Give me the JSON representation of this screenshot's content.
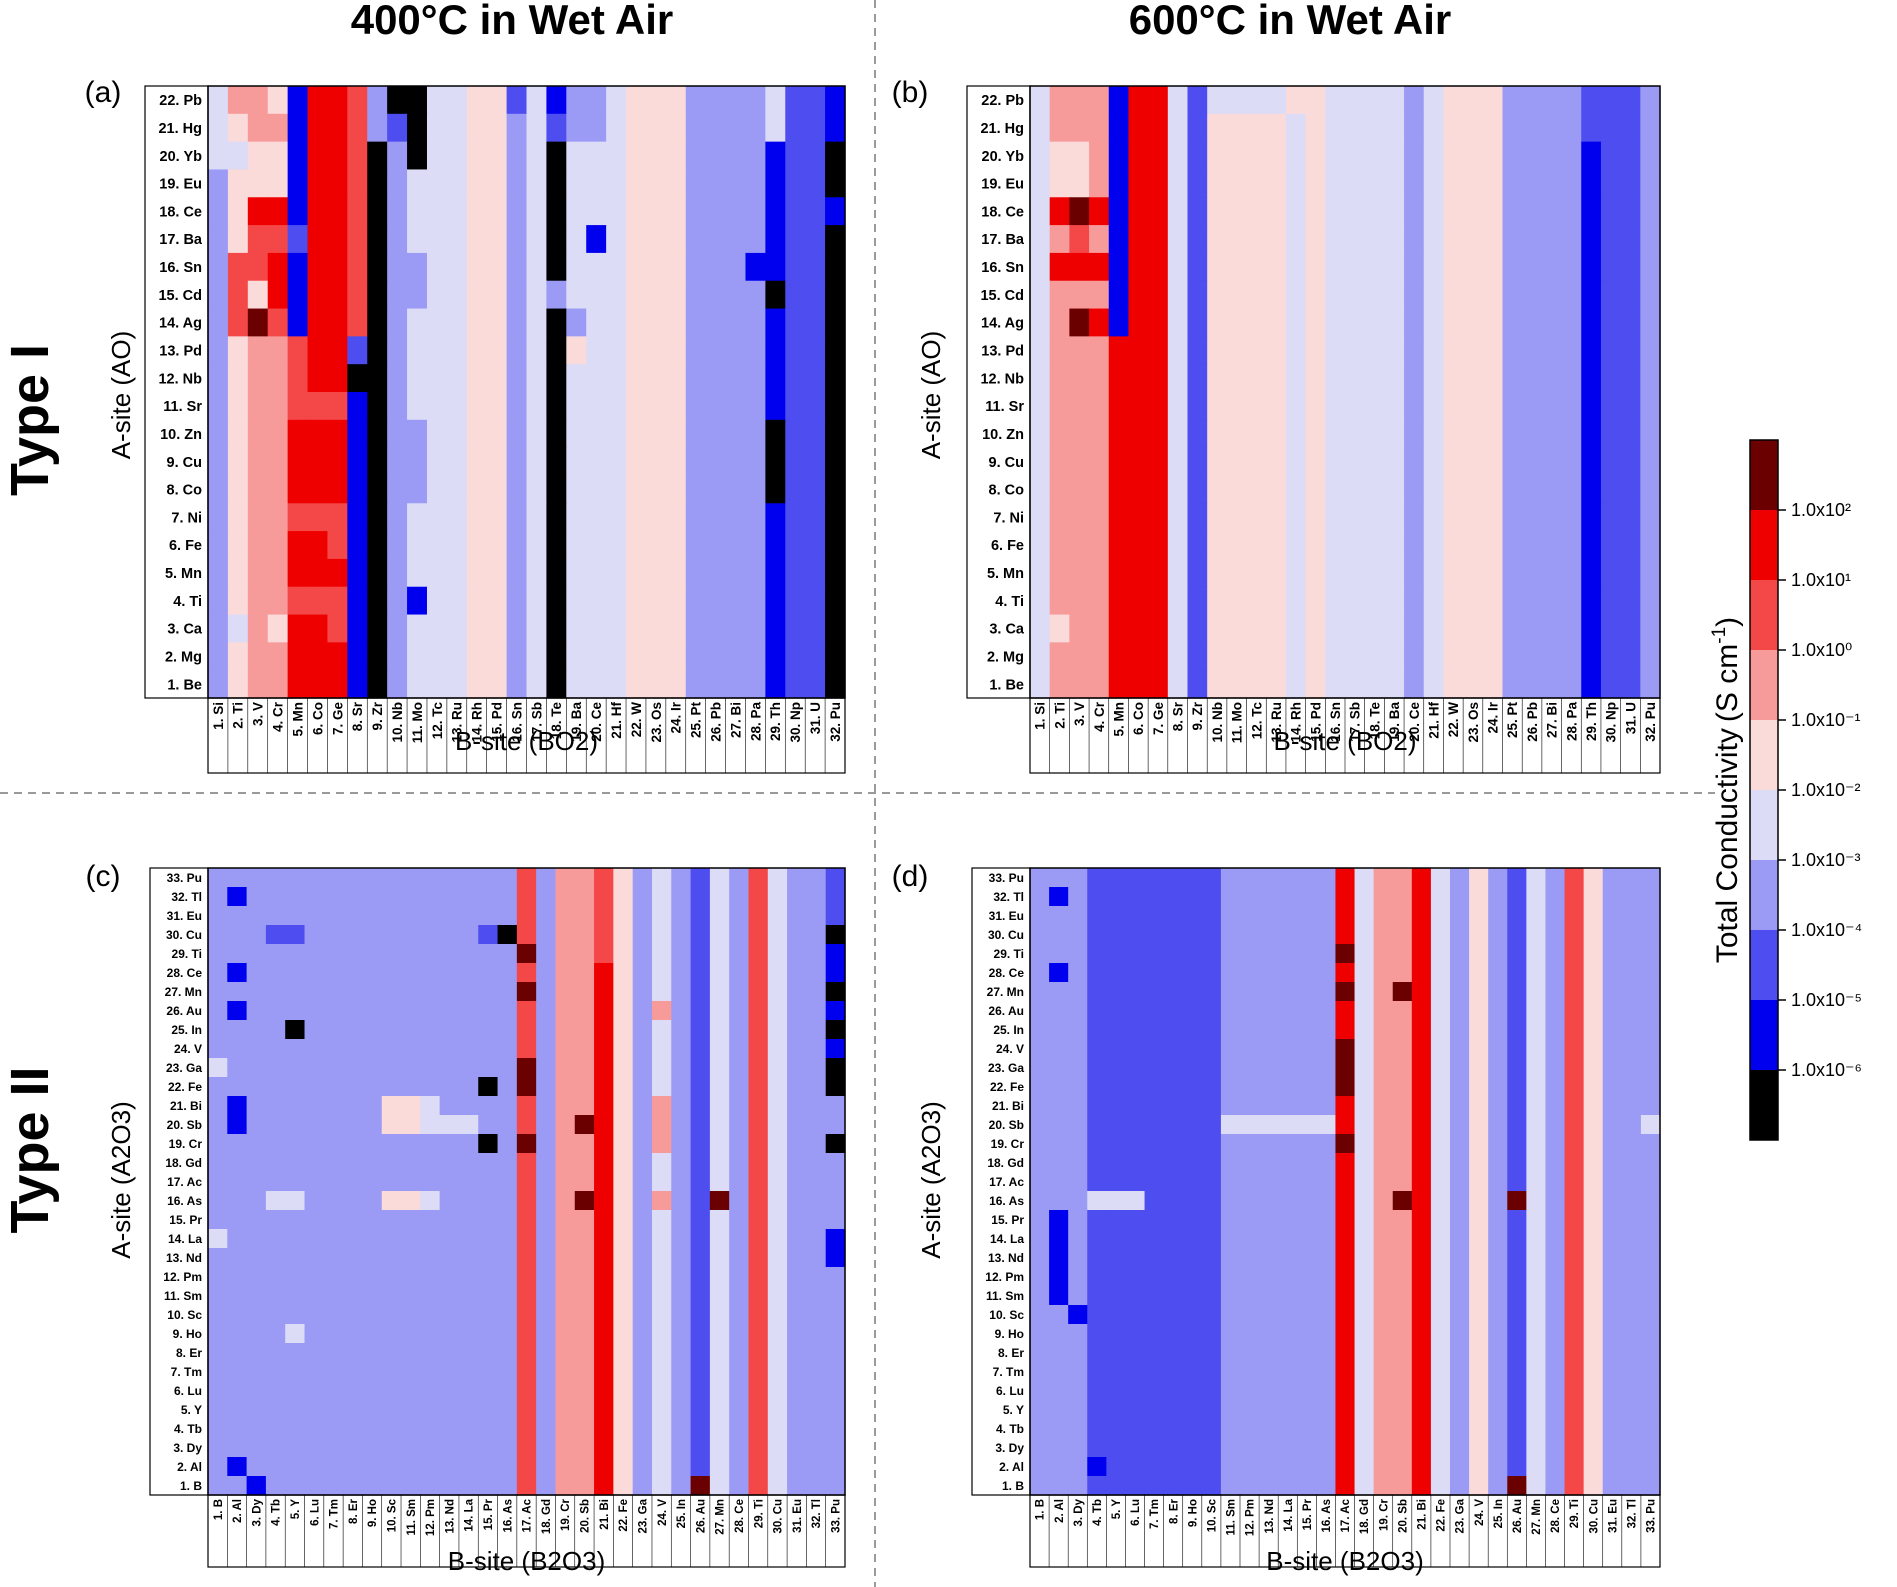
{
  "figure": {
    "col_titles": [
      "400°C in Wet Air",
      "600°C in Wet Air"
    ],
    "row_titles": [
      "Type I",
      "Type II"
    ]
  },
  "colorbar": {
    "title_main": "Total Conductivity",
    "title_unit_open": "(S cm",
    "title_unit_sup": "-1",
    "title_unit_close": ")",
    "tick_labels": [
      "1.0x10²",
      "1.0x10¹",
      "1.0x10⁰",
      "1.0x10⁻¹",
      "1.0x10⁻²",
      "1.0x10⁻³",
      "1.0x10⁻⁴",
      "1.0x10⁻⁵",
      "1.0x10⁻⁶"
    ],
    "bins": [
      "#6b0000",
      "#ee0000",
      "#f44848",
      "#f79a9a",
      "#fbdada",
      "#dcdcf7",
      "#9b9bf5",
      "#4d4df0",
      "#0000ee",
      "#000000"
    ]
  },
  "chart_data": [
    {
      "type": "heatmap",
      "panel": "(a)",
      "xlabel": "B-site (BO2)",
      "ylabel": "A-site (AO)",
      "x_labels": [
        "1. Si",
        "2. Ti",
        "3. V",
        "4. Cr",
        "5. Mn",
        "6. Co",
        "7. Ge",
        "8. Sr",
        "9. Zr",
        "10. Nb",
        "11. Mo",
        "12. Tc",
        "13. Ru",
        "14. Rh",
        "15. Pd",
        "16. Sn",
        "17. Sb",
        "18. Te",
        "19. Ba",
        "20. Ce",
        "21. Hf",
        "22. W",
        "23. Os",
        "24. Ir",
        "25. Pt",
        "26. Pb",
        "27. Bi",
        "28. Pa",
        "29. Th",
        "30. Np",
        "31. U",
        "32. Pu"
      ],
      "y_labels": [
        "22. Pb",
        "21. Hg",
        "20. Yb",
        "19. Eu",
        "18. Ce",
        "17. Ba",
        "16. Sn",
        "15. Cd",
        "14. Ag",
        "13. Pd",
        "12. Nb",
        "11. Sr",
        "10. Zn",
        "9. Cu",
        "8. Co",
        "7. Ni",
        "6. Fe",
        "5. Mn",
        "4. Ti",
        "3. Ca",
        "2. Mg",
        "1. Be"
      ],
      "color_bin_rows": [
        "53348112699554475866544466665778",
        "54338112679554465766544466665778",
        "55448112969554465955544466668779",
        "64448112965554465955544466668779",
        "64118112965554465955544466668778",
        "64227112965554465958544466668779",
        "62218112966554465955544466688779",
        "62418112966554465655544466669779",
        "62028112965554465965544466668779",
        "64332117965554465945544466668779",
        "64332119965554465955544466668779",
        "64332228965554465955544466668779",
        "64331118966554465955544466669779",
        "64331118966554465955544466669779",
        "64331118966554465955544466669779",
        "64332228965554465955544466668779",
        "64331128965554465955544466668779",
        "64331118965554465955544466668779",
        "64332228968554465955544466668779",
        "65341128965554465955544466668779",
        "64331118965554465955544466668779",
        "64331118965554465955544466668779"
      ]
    },
    {
      "type": "heatmap",
      "panel": "(b)",
      "xlabel": "B-site (BO2)",
      "ylabel": "A-site (AO)",
      "x_labels": [
        "1. Si",
        "2. Ti",
        "3. V",
        "4. Cr",
        "5. Mn",
        "6. Co",
        "7. Ge",
        "8. Sr",
        "9. Zr",
        "10. Nb",
        "11. Mo",
        "12. Tc",
        "13. Ru",
        "14. Rh",
        "15. Pd",
        "16. Sn",
        "17. Sb",
        "18. Te",
        "19. Ba",
        "20. Ce",
        "21. Hf",
        "22. W",
        "23. Os",
        "24. Ir",
        "25. Pt",
        "26. Pb",
        "27. Bi",
        "28. Pa",
        "29. Th",
        "30. Np",
        "31. U",
        "32. Pu"
      ],
      "y_labels": [
        "22. Pb",
        "21. Hg",
        "20. Yb",
        "19. Eu",
        "18. Ce",
        "17. Ba",
        "16. Sn",
        "15. Cd",
        "14. Ag",
        "13. Pd",
        "12. Nb",
        "11. Sr",
        "10. Zn",
        "9. Cu",
        "8. Co",
        "7. Ni",
        "6. Fe",
        "5. Mn",
        "4. Ti",
        "3. Ca",
        "2. Mg",
        "1. Be"
      ],
      "color_bin_rows": [
        "53338115755554455556544466667776",
        "53338115744445455556544466667776",
        "54438115744445455556544466668776",
        "54438115744445455556544466668776",
        "51018115744445455556544466668776",
        "53238115744445455556544466668776",
        "51118115744445455556544466668776",
        "53338115744445455556544466668776",
        "53018115744445455556544466668776",
        "53331115744445455556544466668776",
        "53331115744445455556544466668776",
        "53331115744445455556544466668776",
        "53331115744445455556544466668776",
        "53331115744445455556544466668776",
        "53331115744445455556544466668776",
        "53331115744445455556544466668776",
        "53331115744445455556544466668776",
        "53331115744445455556544466668776",
        "53331115744445455556544466668776",
        "54331115744445455556544466668776",
        "53331115744445455556544466668776",
        "53331115744445455556544466668776"
      ]
    },
    {
      "type": "heatmap",
      "panel": "(c)",
      "xlabel": "B-site (B2O3)",
      "ylabel": "A-site (A2O3)",
      "x_labels": [
        "1. B",
        "2. Al",
        "3. Dy",
        "4. Tb",
        "5. Y",
        "6. Lu",
        "7. Tm",
        "8. Er",
        "9. Ho",
        "10. Sc",
        "11. Sm",
        "12. Pm",
        "13. Nd",
        "14. La",
        "15. Pr",
        "16. As",
        "17. Ac",
        "18. Gd",
        "19. Cr",
        "20. Sb",
        "21. Bi",
        "22. Fe",
        "23. Ga",
        "24. V",
        "25. In",
        "26. Au",
        "27. Mn",
        "28. Ce",
        "29. Ti",
        "30. Cu",
        "31. Eu",
        "32. Tl",
        "33. Pu"
      ],
      "y_labels": [
        "33. Pu",
        "32. Tl",
        "31. Eu",
        "30. Cu",
        "29. Ti",
        "28. Ce",
        "27. Mn",
        "26. Au",
        "25. In",
        "24. V",
        "23. Ga",
        "22. Fe",
        "21. Bi",
        "20. Sb",
        "19. Cr",
        "18. Gd",
        "17. Ac",
        "16. As",
        "15. Pr",
        "14. La",
        "13. Nd",
        "12. Pm",
        "11. Sm",
        "10. Sc",
        "9. Ho",
        "8. Er",
        "7. Tm",
        "6. Lu",
        "5. Y",
        "4. Tb",
        "3. Dy",
        "2. Al",
        "1. B"
      ],
      "color_bin_rows": [
        "666666666666666626332465675625667",
        "686666666666666626332465675625667",
        "666666666666666626332465675625667",
        "666776666666667926332465675625669",
        "666666666666666606332465675625668",
        "686666666666666626331465675625668",
        "666666666666666606331465675625669",
        "686666666666666626331463675625668",
        "666696666666666626331465675625669",
        "666666666666666626331465675625668",
        "566666666666666606331465675625669",
        "666666666666669606331465675625669",
        "686666666445666626331463675625666",
        "686666666445556626301463675625666",
        "666666666666669606331463675625669",
        "666666666666666626331465675625666",
        "666666666666666626331465675625666",
        "666556666445666626301463670625666",
        "666666666666666626331465675625666",
        "566666666666666626331465675625668",
        "666666666666666626331465675625668",
        "666666666666666626331465675625666",
        "666666666666666626331465675625666",
        "666666666666666626331465675625666",
        "666656666666666626331465675625666",
        "666666666666666626331465675625666",
        "666666666666666626331465675625666",
        "666666666666666626331465675625666",
        "666666666666666626331465675625666",
        "666666666666666626331465675625666",
        "666666666666666626331465675625666",
        "686666666666666626331465675625666",
        "668666666666666626331465605625666"
      ]
    },
    {
      "type": "heatmap",
      "panel": "(d)",
      "xlabel": "B-site (B2O3)",
      "ylabel": "A-site (A2O3)",
      "x_labels": [
        "1. B",
        "2. Al",
        "3. Dy",
        "4. Tb",
        "5. Y",
        "6. Lu",
        "7. Tm",
        "8. Er",
        "9. Ho",
        "10. Sc",
        "11. Sm",
        "12. Pm",
        "13. Nd",
        "14. La",
        "15. Pr",
        "16. As",
        "17. Ac",
        "18. Gd",
        "19. Cr",
        "20. Sb",
        "21. Bi",
        "22. Fe",
        "23. Ga",
        "24. V",
        "25. In",
        "26. Au",
        "27. Mn",
        "28. Ce",
        "29. Ti",
        "30. Cu",
        "31. Eu",
        "32. Tl",
        "33. Pu"
      ],
      "y_labels": [
        "33. Pu",
        "32. Tl",
        "31. Eu",
        "30. Cu",
        "29. Ti",
        "28. Ce",
        "27. Mn",
        "26. Au",
        "25. In",
        "24. V",
        "23. Ga",
        "22. Fe",
        "21. Bi",
        "20. Sb",
        "19. Cr",
        "18. Gd",
        "17. Ac",
        "16. As",
        "15. Pr",
        "14. La",
        "13. Nd",
        "12. Pm",
        "11. Sm",
        "10. Sc",
        "9. Ho",
        "8. Er",
        "7. Tm",
        "6. Lu",
        "5. Y",
        "4. Tb",
        "3. Dy",
        "2. Al",
        "1. B"
      ],
      "color_bin_rows": [
        "666777777766666615331564675624666",
        "686777777766666615331564675624666",
        "666777777766666615331564675624666",
        "666777777766666615331564675624666",
        "666777777766666605331564675624666",
        "686777777766666615331564675624666",
        "666777777766666605301564675624666",
        "666777777766666615331564675624666",
        "666777777766666615331564675624666",
        "666777777766666605331564675624666",
        "666777777766666605331564675624666",
        "666777777766666605331564675624666",
        "666777777766666615331564675624666",
        "666777777755555515331564675624665",
        "666777777766666605331564675624666",
        "666777777766666615331564675624666",
        "666777777766666615331564675624666",
        "666555777766666615301564605624666",
        "686777777766666615331564675624666",
        "686777777766666615331564675624666",
        "686777777766666615331564675624666",
        "686777777766666615331564675624666",
        "686777777766666615331564675624666",
        "668777777766666615331564675624666",
        "666777777766666615331564675624666",
        "666777777766666615331564675624666",
        "666777777766666615331564675624666",
        "666777777766666615331564675624666",
        "666777777766666615331564675624666",
        "666777777766666615331564675624666",
        "666777777766666615331564675624666",
        "666877777766666615331564675624666",
        "666777777766666615331564605624666"
      ]
    }
  ]
}
